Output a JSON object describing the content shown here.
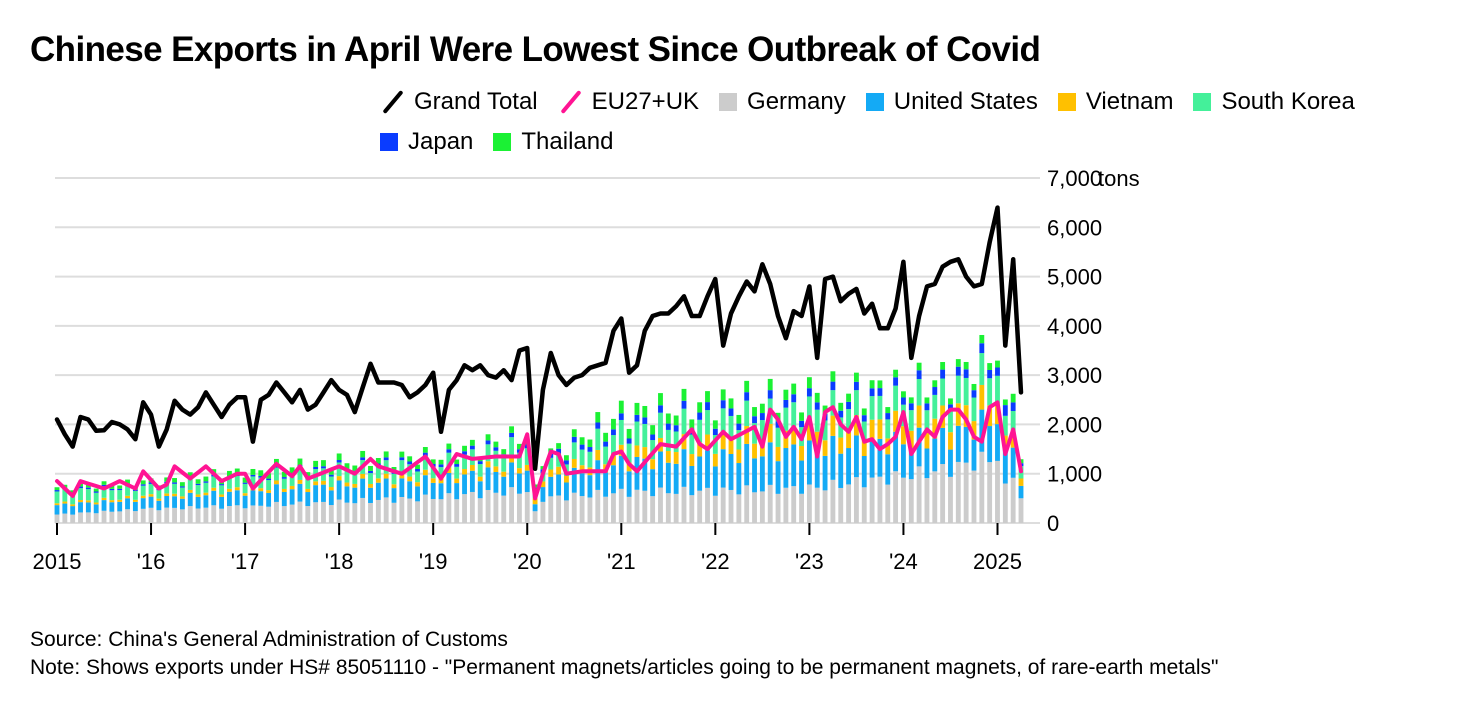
{
  "title": "Chinese Exports in April Were Lowest Since Outbreak of Covid",
  "legend": [
    {
      "label": "Grand Total",
      "kind": "line",
      "color": "#000000"
    },
    {
      "label": "EU27+UK",
      "kind": "line",
      "color": "#ff1493"
    },
    {
      "label": "Germany",
      "kind": "box",
      "color": "#cccccc"
    },
    {
      "label": "United States",
      "kind": "box",
      "color": "#14aaf5"
    },
    {
      "label": "Vietnam",
      "kind": "box",
      "color": "#ffc000"
    },
    {
      "label": "South Korea",
      "kind": "box",
      "color": "#44f09a"
    },
    {
      "label": "Japan",
      "kind": "box",
      "color": "#0a3cff"
    },
    {
      "label": "Thailand",
      "kind": "box",
      "color": "#1bf134"
    }
  ],
  "footer": {
    "source": "Source: China's General Administration of Customs",
    "note": "Note: Shows exports under HS# 85051110 - \"Permanent magnets/articles going to be permanent magnets, of rare-earth metals\""
  },
  "chart_data": {
    "type": "bar",
    "title": "Chinese Exports in April Were Lowest Since Outbreak of Covid",
    "ylabel": "tons",
    "ylim": [
      0,
      7000
    ],
    "yticks": [
      0,
      1000,
      2000,
      3000,
      4000,
      5000,
      6000,
      7000
    ],
    "ytick_labels": [
      "0",
      "1,000",
      "2,000",
      "3,000",
      "4,000",
      "5,000",
      "6,000",
      "7,000"
    ],
    "y_unit": "tons",
    "xticks": [
      {
        "label": "2015",
        "month_index": 0
      },
      {
        "label": "'16",
        "month_index": 12
      },
      {
        "label": "'17",
        "month_index": 24
      },
      {
        "label": "'18",
        "month_index": 36
      },
      {
        "label": "'19",
        "month_index": 48
      },
      {
        "label": "'20",
        "month_index": 60
      },
      {
        "label": "'21",
        "month_index": 72
      },
      {
        "label": "'22",
        "month_index": 84
      },
      {
        "label": "'23",
        "month_index": 96
      },
      {
        "label": "'24",
        "month_index": 108
      },
      {
        "label": "2025",
        "month_index": 120
      }
    ],
    "x_start": "2015-01",
    "x_end": "2025-04",
    "grand_total_anchors": [
      [
        0,
        2100
      ],
      [
        1,
        1800
      ],
      [
        2,
        1550
      ],
      [
        3,
        2150
      ],
      [
        4,
        2100
      ],
      [
        5,
        1870
      ],
      [
        6,
        1880
      ],
      [
        7,
        2050
      ],
      [
        8,
        2000
      ],
      [
        9,
        1900
      ],
      [
        10,
        1700
      ],
      [
        11,
        2450
      ],
      [
        12,
        2200
      ],
      [
        13,
        1550
      ],
      [
        14,
        1900
      ],
      [
        15,
        2480
      ],
      [
        16,
        2300
      ],
      [
        17,
        2200
      ],
      [
        18,
        2350
      ],
      [
        19,
        2650
      ],
      [
        20,
        2400
      ],
      [
        21,
        2150
      ],
      [
        22,
        2400
      ],
      [
        23,
        2550
      ],
      [
        24,
        2550
      ],
      [
        25,
        1650
      ],
      [
        26,
        2500
      ],
      [
        27,
        2600
      ],
      [
        28,
        2850
      ],
      [
        29,
        2650
      ],
      [
        30,
        2450
      ],
      [
        31,
        2700
      ],
      [
        32,
        2300
      ],
      [
        33,
        2400
      ],
      [
        34,
        2650
      ],
      [
        35,
        2900
      ],
      [
        36,
        2700
      ],
      [
        37,
        2600
      ],
      [
        38,
        2250
      ],
      [
        39,
        2750
      ],
      [
        40,
        3230
      ],
      [
        41,
        2850
      ],
      [
        42,
        2850
      ],
      [
        43,
        2850
      ],
      [
        44,
        2800
      ],
      [
        45,
        2550
      ],
      [
        46,
        2650
      ],
      [
        47,
        2800
      ],
      [
        48,
        3050
      ],
      [
        49,
        1850
      ],
      [
        50,
        2700
      ],
      [
        51,
        2900
      ],
      [
        52,
        3200
      ],
      [
        53,
        3100
      ],
      [
        54,
        3200
      ],
      [
        55,
        3000
      ],
      [
        56,
        2950
      ],
      [
        57,
        3100
      ],
      [
        58,
        2900
      ],
      [
        59,
        3500
      ],
      [
        60,
        3550
      ],
      [
        61,
        1100
      ],
      [
        62,
        2700
      ],
      [
        63,
        3450
      ],
      [
        64,
        3000
      ],
      [
        65,
        2800
      ],
      [
        66,
        2950
      ],
      [
        67,
        3000
      ],
      [
        68,
        3150
      ],
      [
        69,
        3200
      ],
      [
        70,
        3250
      ],
      [
        71,
        3900
      ],
      [
        72,
        4150
      ],
      [
        73,
        3050
      ],
      [
        74,
        3200
      ],
      [
        75,
        3900
      ],
      [
        76,
        4200
      ],
      [
        77,
        4250
      ],
      [
        78,
        4250
      ],
      [
        79,
        4400
      ],
      [
        80,
        4600
      ],
      [
        81,
        4200
      ],
      [
        82,
        4200
      ],
      [
        83,
        4600
      ],
      [
        84,
        4950
      ],
      [
        85,
        3600
      ],
      [
        86,
        4250
      ],
      [
        87,
        4600
      ],
      [
        88,
        4900
      ],
      [
        89,
        4700
      ],
      [
        90,
        5250
      ],
      [
        91,
        4850
      ],
      [
        92,
        4200
      ],
      [
        93,
        3750
      ],
      [
        94,
        4300
      ],
      [
        95,
        4200
      ],
      [
        96,
        4800
      ],
      [
        97,
        3350
      ],
      [
        98,
        4950
      ],
      [
        99,
        5000
      ],
      [
        100,
        4500
      ],
      [
        101,
        4650
      ],
      [
        102,
        4750
      ],
      [
        103,
        4250
      ],
      [
        104,
        4450
      ],
      [
        105,
        3950
      ],
      [
        106,
        3950
      ],
      [
        107,
        4350
      ],
      [
        108,
        5300
      ],
      [
        109,
        3350
      ],
      [
        110,
        4200
      ],
      [
        111,
        4800
      ],
      [
        112,
        4850
      ],
      [
        113,
        5200
      ],
      [
        114,
        5300
      ],
      [
        115,
        5350
      ],
      [
        116,
        5000
      ],
      [
        117,
        4800
      ],
      [
        118,
        4850
      ],
      [
        119,
        5700
      ],
      [
        120,
        6400
      ],
      [
        121,
        3600
      ],
      [
        122,
        5350
      ],
      [
        123,
        2650
      ]
    ],
    "eu27_uk_anchors": [
      [
        0,
        850
      ],
      [
        2,
        550
      ],
      [
        3,
        850
      ],
      [
        6,
        700
      ],
      [
        8,
        850
      ],
      [
        10,
        700
      ],
      [
        11,
        1050
      ],
      [
        13,
        700
      ],
      [
        14,
        780
      ],
      [
        15,
        1150
      ],
      [
        17,
        900
      ],
      [
        19,
        1150
      ],
      [
        21,
        850
      ],
      [
        23,
        1000
      ],
      [
        24,
        1000
      ],
      [
        25,
        700
      ],
      [
        28,
        1200
      ],
      [
        30,
        950
      ],
      [
        31,
        1150
      ],
      [
        32,
        900
      ],
      [
        36,
        1150
      ],
      [
        38,
        1000
      ],
      [
        40,
        1300
      ],
      [
        41,
        1150
      ],
      [
        44,
        1000
      ],
      [
        47,
        1350
      ],
      [
        49,
        900
      ],
      [
        51,
        1400
      ],
      [
        53,
        1300
      ],
      [
        56,
        1350
      ],
      [
        59,
        1350
      ],
      [
        60,
        1800
      ],
      [
        61,
        500
      ],
      [
        62,
        1000
      ],
      [
        63,
        1450
      ],
      [
        64,
        1400
      ],
      [
        65,
        1000
      ],
      [
        67,
        1050
      ],
      [
        70,
        1050
      ],
      [
        71,
        1400
      ],
      [
        72,
        1450
      ],
      [
        73,
        1200
      ],
      [
        74,
        1050
      ],
      [
        77,
        1600
      ],
      [
        79,
        1550
      ],
      [
        81,
        1900
      ],
      [
        82,
        1600
      ],
      [
        83,
        1500
      ],
      [
        85,
        1850
      ],
      [
        86,
        1700
      ],
      [
        89,
        1950
      ],
      [
        90,
        1550
      ],
      [
        91,
        2300
      ],
      [
        92,
        2100
      ],
      [
        93,
        1750
      ],
      [
        94,
        1950
      ],
      [
        95,
        1700
      ],
      [
        96,
        2150
      ],
      [
        97,
        1350
      ],
      [
        98,
        2250
      ],
      [
        99,
        2350
      ],
      [
        100,
        2000
      ],
      [
        101,
        1850
      ],
      [
        102,
        2150
      ],
      [
        103,
        1650
      ],
      [
        104,
        1700
      ],
      [
        105,
        1500
      ],
      [
        106,
        1600
      ],
      [
        107,
        1750
      ],
      [
        108,
        2250
      ],
      [
        109,
        1400
      ],
      [
        110,
        1650
      ],
      [
        111,
        1900
      ],
      [
        112,
        1750
      ],
      [
        113,
        2150
      ],
      [
        114,
        2300
      ],
      [
        115,
        2300
      ],
      [
        116,
        2100
      ],
      [
        117,
        1750
      ],
      [
        118,
        1650
      ],
      [
        119,
        2350
      ],
      [
        120,
        2450
      ],
      [
        121,
        1400
      ],
      [
        122,
        1900
      ],
      [
        123,
        1050
      ]
    ],
    "stacked_series": [
      {
        "name": "Germany",
        "color": "#cccccc",
        "anchors": [
          [
            0,
            180
          ],
          [
            12,
            300
          ],
          [
            24,
            350
          ],
          [
            36,
            430
          ],
          [
            48,
            520
          ],
          [
            59,
            650
          ],
          [
            60,
            650
          ],
          [
            61,
            250
          ],
          [
            62,
            500
          ],
          [
            72,
            620
          ],
          [
            84,
            650
          ],
          [
            96,
            700
          ],
          [
            108,
            950
          ],
          [
            114,
            1100
          ],
          [
            120,
            1350
          ],
          [
            121,
            700
          ],
          [
            122,
            1050
          ],
          [
            123,
            500
          ]
        ]
      },
      {
        "name": "United States",
        "color": "#14aaf5",
        "anchors": [
          [
            0,
            200
          ],
          [
            12,
            220
          ],
          [
            24,
            300
          ],
          [
            36,
            350
          ],
          [
            48,
            350
          ],
          [
            59,
            450
          ],
          [
            60,
            450
          ],
          [
            61,
            150
          ],
          [
            62,
            350
          ],
          [
            72,
            600
          ],
          [
            84,
            700
          ],
          [
            96,
            800
          ],
          [
            108,
            700
          ],
          [
            114,
            650
          ],
          [
            120,
            800
          ],
          [
            121,
            600
          ],
          [
            122,
            700
          ],
          [
            123,
            250
          ]
        ]
      },
      {
        "name": "Vietnam",
        "color": "#ffc000",
        "anchors": [
          [
            0,
            40
          ],
          [
            24,
            60
          ],
          [
            36,
            80
          ],
          [
            48,
            100
          ],
          [
            60,
            120
          ],
          [
            72,
            200
          ],
          [
            84,
            300
          ],
          [
            96,
            350
          ],
          [
            108,
            380
          ],
          [
            120,
            450
          ],
          [
            121,
            250
          ],
          [
            122,
            300
          ],
          [
            123,
            150
          ]
        ]
      },
      {
        "name": "South Korea",
        "color": "#44f09a",
        "anchors": [
          [
            0,
            250
          ],
          [
            12,
            200
          ],
          [
            24,
            220
          ],
          [
            36,
            250
          ],
          [
            48,
            250
          ],
          [
            60,
            350
          ],
          [
            61,
            150
          ],
          [
            62,
            200
          ],
          [
            72,
            450
          ],
          [
            84,
            450
          ],
          [
            96,
            450
          ],
          [
            108,
            450
          ],
          [
            114,
            500
          ],
          [
            120,
            600
          ],
          [
            121,
            350
          ],
          [
            122,
            550
          ],
          [
            123,
            250
          ]
        ]
      },
      {
        "name": "Japan",
        "color": "#0a3cff",
        "anchors": [
          [
            0,
            30
          ],
          [
            24,
            30
          ],
          [
            48,
            60
          ],
          [
            60,
            80
          ],
          [
            72,
            120
          ],
          [
            84,
            150
          ],
          [
            96,
            150
          ],
          [
            108,
            150
          ],
          [
            120,
            180
          ],
          [
            122,
            200
          ],
          [
            123,
            60
          ]
        ]
      },
      {
        "name": "Thailand",
        "color": "#1bf134",
        "anchors": [
          [
            0,
            60
          ],
          [
            12,
            80
          ],
          [
            24,
            120
          ],
          [
            36,
            120
          ],
          [
            48,
            100
          ],
          [
            60,
            120
          ],
          [
            61,
            60
          ],
          [
            72,
            230
          ],
          [
            84,
            200
          ],
          [
            96,
            200
          ],
          [
            108,
            130
          ],
          [
            120,
            150
          ],
          [
            121,
            100
          ],
          [
            122,
            200
          ],
          [
            123,
            80
          ]
        ]
      }
    ]
  }
}
